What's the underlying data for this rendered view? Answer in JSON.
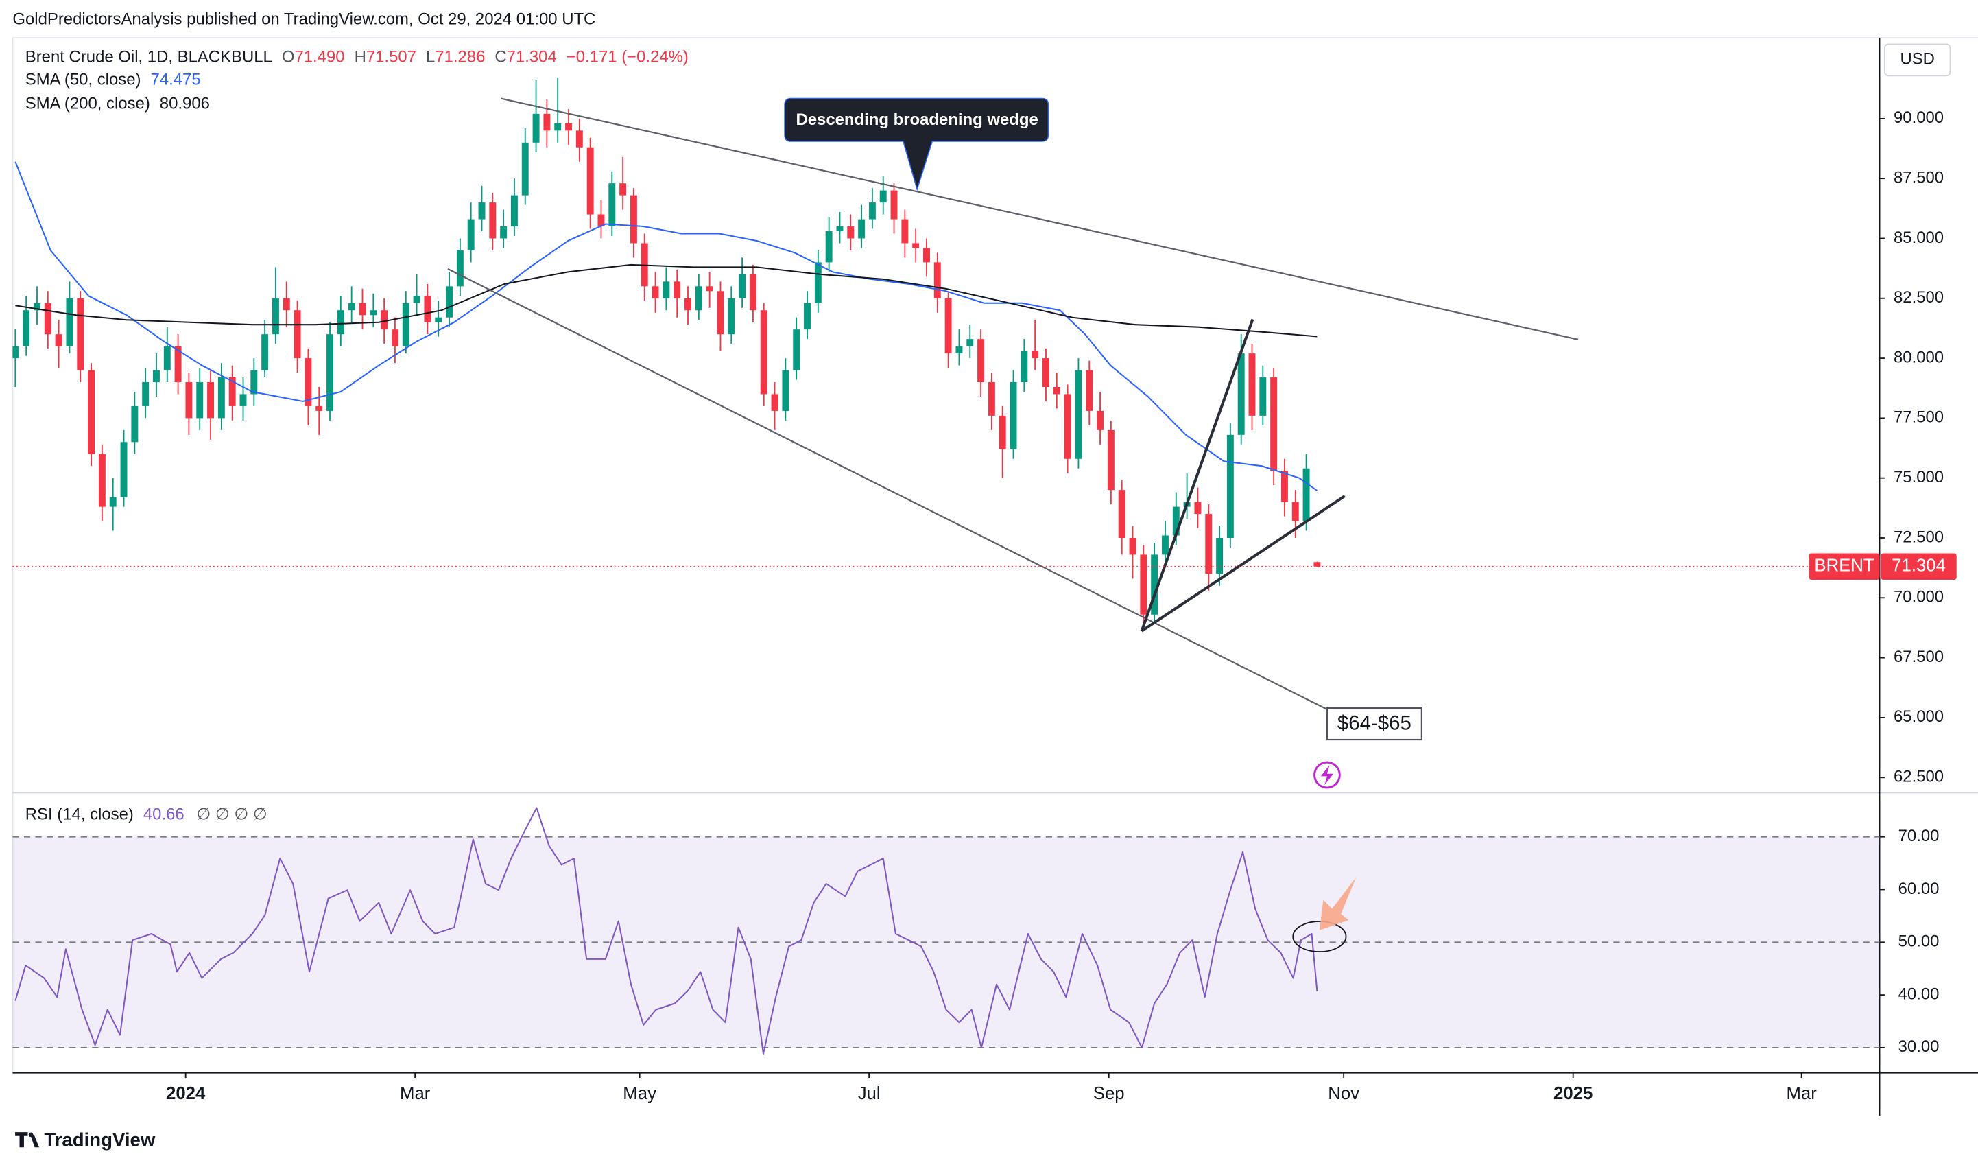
{
  "header": {
    "published": "GoldPredictorsAnalysis published on TradingView.com, Oct 29, 2024 01:00 UTC"
  },
  "footer": {
    "brand": "TradingView"
  },
  "chart_data": [
    {
      "type": "candlestick",
      "legend": {
        "symbol": "Brent Crude Oil, 1D, BLACKBULL",
        "ohlc": [
          {
            "key": "O",
            "value": "71.490"
          },
          {
            "key": "H",
            "value": "71.507"
          },
          {
            "key": "L",
            "value": "71.286"
          },
          {
            "key": "C",
            "value": "71.304"
          }
        ],
        "change": "−0.171 (−0.24%)"
      },
      "currency": "USD",
      "symbol_tag": "BRENT",
      "annotations": [
        "Descending broadening wedge",
        "$64-$65"
      ],
      "up_color": "#089981",
      "down_color": "#f23645",
      "last_price_color": "#f23645",
      "xlim": [
        -0.5,
        343.7
      ],
      "xticks": [
        {
          "value": 31.4,
          "label": "2024"
        },
        {
          "value": 73.7,
          "label": "Mar"
        },
        {
          "value": 115.1,
          "label": "May"
        },
        {
          "value": 157.4,
          "label": "Jul"
        },
        {
          "value": 201.6,
          "label": "Sep"
        },
        {
          "value": 244.9,
          "label": "Nov"
        },
        {
          "value": 287.2,
          "label": "2025"
        },
        {
          "value": 329.3,
          "label": "Mar"
        }
      ],
      "ylim": [
        61.92,
        93.37
      ],
      "yticks": [
        {
          "value": 62.5,
          "label": "62.500"
        },
        {
          "value": 65,
          "label": "65.000"
        },
        {
          "value": 67.5,
          "label": "67.500"
        },
        {
          "value": 70,
          "label": "70.000"
        },
        {
          "value": 72.5,
          "label": "72.500"
        },
        {
          "value": 75,
          "label": "75.000"
        },
        {
          "value": 77.5,
          "label": "77.500"
        },
        {
          "value": 80,
          "label": "80.000"
        },
        {
          "value": 82.5,
          "label": "82.500"
        },
        {
          "value": 85,
          "label": "85.000"
        },
        {
          "value": 87.5,
          "label": "87.500"
        },
        {
          "value": 90,
          "label": "90.000"
        }
      ],
      "x": [
        0,
        2,
        4,
        6,
        8,
        10,
        12,
        14,
        16,
        18,
        20,
        22,
        24,
        26,
        28,
        30,
        32,
        34,
        36,
        38,
        40,
        42,
        44,
        46,
        48,
        50,
        52,
        54,
        56,
        58,
        60,
        62,
        64,
        66,
        68,
        70,
        72,
        74,
        76,
        78,
        80,
        82,
        84,
        86,
        88,
        90,
        92,
        94,
        96,
        98,
        100,
        102,
        104,
        106,
        108,
        110,
        112,
        114,
        116,
        118,
        120,
        122,
        124,
        126,
        128,
        130,
        132,
        134,
        136,
        138,
        140,
        142,
        144,
        146,
        148,
        150,
        152,
        154,
        156,
        158,
        160,
        162,
        164,
        166,
        168,
        170,
        172,
        174,
        176,
        178,
        180,
        182,
        184,
        186,
        188,
        190,
        192,
        194,
        196,
        198,
        200,
        202,
        204,
        206,
        208,
        210,
        212,
        214,
        216,
        218,
        220,
        222,
        224,
        226,
        228,
        230,
        232,
        234,
        236,
        238,
        240
      ],
      "open": [
        80,
        80.5,
        82,
        82.3,
        81,
        80.5,
        82.5,
        79.5,
        76,
        73.8,
        74.2,
        76.5,
        78,
        79,
        79.5,
        80.5,
        79,
        77.5,
        79,
        77.5,
        79.2,
        78,
        78.5,
        79.5,
        81,
        82.5,
        82,
        80,
        78,
        77.8,
        81,
        82,
        82.3,
        81.8,
        82,
        81.2,
        80.5,
        82.3,
        82.6,
        81.5,
        81.7,
        83,
        84.5,
        85.8,
        86.5,
        85,
        85.5,
        86.8,
        89,
        90.2,
        89.5,
        89.8,
        89.5,
        88.8,
        86,
        85.5,
        87.3,
        86.8,
        84.8,
        83,
        82.5,
        83.2,
        82.5,
        82,
        83,
        82.8,
        81,
        82.5,
        83.5,
        82,
        78.5,
        77.8,
        79.5,
        81.2,
        82.3,
        84,
        85.3,
        85.5,
        85,
        85.8,
        86.5,
        87,
        85.8,
        84.8,
        84.6,
        84,
        82.5,
        80.2,
        80.5,
        80.8,
        79,
        77.6,
        76.2,
        79,
        80.3,
        80,
        78.8,
        78.5,
        75.8,
        79.5,
        77.8,
        77,
        74.5,
        72.5,
        71.8,
        69.3,
        71.8,
        72.6,
        73.8,
        74,
        73.5,
        71,
        72.5,
        76.8,
        80.2,
        77.6,
        79.2,
        75.3,
        74,
        73.2,
        71.49
      ],
      "high": [
        81.2,
        82.6,
        83,
        82.8,
        81.6,
        83.2,
        82.8,
        79.8,
        76.4,
        75,
        77,
        78.6,
        79.6,
        80.2,
        81.3,
        81,
        79.4,
        79.6,
        79.5,
        79.8,
        79.7,
        79.2,
        80,
        81.6,
        83.8,
        83.2,
        82.4,
        80.4,
        78.8,
        81.5,
        82.6,
        83,
        82.9,
        82.7,
        82.5,
        81.7,
        82.8,
        83.5,
        83.1,
        82.4,
        83.6,
        85,
        86.5,
        87.2,
        86.9,
        86.2,
        87.5,
        89.6,
        91.6,
        90.8,
        91.7,
        90.4,
        90,
        89.2,
        86.6,
        87.8,
        88.4,
        87.1,
        85.2,
        83.6,
        83.8,
        83.7,
        83,
        83.5,
        83.6,
        83.2,
        83,
        84.2,
        83.9,
        82.3,
        79,
        80,
        81.7,
        82.8,
        84.5,
        85.9,
        86.1,
        86,
        86.4,
        87.1,
        87.6,
        87.3,
        86.2,
        85.4,
        85,
        84.4,
        82.8,
        81.2,
        81.4,
        81.2,
        79.4,
        78,
        79.5,
        80.8,
        81.6,
        80.4,
        79.4,
        78.9,
        80,
        79.9,
        78.6,
        77.4,
        74.9,
        73,
        72.2,
        72.3,
        73.2,
        74.4,
        75.2,
        74.6,
        73.9,
        73,
        77.3,
        81,
        80.6,
        79.7,
        79.6,
        75.8,
        74.5,
        76,
        71.507
      ],
      "low": [
        78.8,
        80.1,
        81.4,
        80.4,
        79.6,
        80.2,
        79,
        75.5,
        73.2,
        72.8,
        73.8,
        76,
        77.5,
        78.4,
        79,
        78.5,
        76.8,
        77,
        76.6,
        77,
        77.4,
        77.4,
        78,
        79.2,
        80.6,
        81.3,
        79.4,
        77.2,
        76.8,
        77.4,
        80.5,
        81.5,
        81.2,
        81.3,
        80.6,
        79.8,
        80.2,
        81.8,
        81,
        80.9,
        81.3,
        82.6,
        84,
        85.3,
        84.5,
        84.6,
        85.1,
        86.4,
        88.6,
        88.8,
        89,
        88.9,
        88.2,
        85.4,
        85,
        85.1,
        86.2,
        84.2,
        82.4,
        81.9,
        82,
        81.7,
        81.4,
        81.6,
        82.1,
        80.3,
        80.6,
        82.1,
        81.5,
        78,
        77,
        77.4,
        79.1,
        80.8,
        81.9,
        83.6,
        84.8,
        84.5,
        84.6,
        85.4,
        86,
        85.2,
        84.2,
        84,
        83.4,
        81.9,
        79.6,
        79.7,
        80,
        78.4,
        77,
        75,
        75.8,
        78.6,
        79.5,
        78.2,
        77.9,
        75.2,
        75.4,
        77.2,
        76.4,
        73.9,
        71.8,
        70.8,
        68.7,
        69,
        71.3,
        72.2,
        73.3,
        72.9,
        70.3,
        70.5,
        72.1,
        76.4,
        77,
        77.2,
        74.7,
        73.4,
        72.5,
        72.8,
        71.286
      ],
      "close": [
        80.5,
        82,
        82.3,
        81,
        80.5,
        82.5,
        79.5,
        76,
        73.8,
        74.2,
        76.5,
        78,
        79,
        79.5,
        80.5,
        79,
        77.5,
        79,
        77.5,
        79.2,
        78,
        78.5,
        79.5,
        81,
        82.5,
        82,
        80,
        78,
        77.8,
        81,
        82,
        82.3,
        81.8,
        82,
        81.2,
        80.5,
        82.3,
        82.6,
        81.5,
        81.7,
        83,
        84.5,
        85.8,
        86.5,
        85,
        85.5,
        86.8,
        89,
        90.2,
        89.5,
        89.8,
        89.5,
        88.8,
        86,
        85.5,
        87.3,
        86.8,
        84.8,
        83,
        82.5,
        83.2,
        82.5,
        82,
        83,
        82.8,
        81,
        82.5,
        83.5,
        82,
        78.5,
        77.8,
        79.5,
        81.2,
        82.3,
        84,
        85.3,
        85.5,
        85,
        85.8,
        86.5,
        87,
        85.8,
        84.8,
        84.6,
        84,
        82.5,
        80.2,
        80.5,
        80.8,
        79,
        77.6,
        76.2,
        79,
        80.3,
        80,
        78.8,
        78.5,
        75.8,
        79.5,
        77.8,
        77,
        74.5,
        72.5,
        71.8,
        69.3,
        71.8,
        72.6,
        73.8,
        74,
        73.5,
        71,
        72.5,
        76.8,
        80.2,
        77.6,
        79.2,
        75.3,
        74,
        73.2,
        75.4,
        71.304
      ],
      "series": [
        {
          "name": "SMA (50, close)",
          "color": "#2962ff",
          "last_value": "74.475",
          "x": [
            0,
            6.5,
            13.5,
            20.5,
            27.4,
            34.4,
            43.7,
            53,
            60,
            67,
            74,
            80.9,
            87.9,
            94.9,
            101.9,
            108.8,
            115.8,
            122.8,
            129.8,
            136.7,
            143.7,
            150.7,
            157.7,
            164.7,
            171.6,
            178.6,
            185.6,
            192.6,
            197.2,
            201.9,
            208.8,
            215.8,
            222.8,
            229.8,
            236.7,
            240
          ],
          "values": [
            88.2,
            84.5,
            82.6,
            81.8,
            80.7,
            79.7,
            78.6,
            78.2,
            78.6,
            79.7,
            80.7,
            81.5,
            82.6,
            83.8,
            84.9,
            85.6,
            85.5,
            85.2,
            85.2,
            84.9,
            84.4,
            83.6,
            83.3,
            83.1,
            82.8,
            82.3,
            82.3,
            82,
            81,
            79.7,
            78.4,
            76.8,
            75.7,
            75.5,
            75,
            74.475
          ]
        },
        {
          "name": "SMA (200, close)",
          "color": "#131722",
          "last_value": "80.906",
          "x": [
            0,
            11.2,
            20.5,
            32.1,
            43.7,
            55.3,
            67,
            78.6,
            90.2,
            101.9,
            113.5,
            125.1,
            136.7,
            148.4,
            160,
            171.6,
            183.3,
            194.9,
            206.5,
            218.1,
            229.8,
            240
          ],
          "values": [
            82.2,
            81.8,
            81.6,
            81.5,
            81.4,
            81.4,
            81.5,
            82,
            83.1,
            83.6,
            83.9,
            83.8,
            83.8,
            83.5,
            83.3,
            82.9,
            82.3,
            81.7,
            81.4,
            81.3,
            81.1,
            80.906
          ]
        }
      ]
    },
    {
      "type": "line",
      "xlim": [
        -0.5,
        343.7
      ],
      "ylim": [
        25.21,
        78.14
      ],
      "yticks": [
        {
          "value": 30,
          "label": "30.00"
        },
        {
          "value": 40,
          "label": "40.00"
        },
        {
          "value": 50,
          "label": "50.00"
        },
        {
          "value": 60,
          "label": "60.00"
        },
        {
          "value": 70,
          "label": "70.00"
        }
      ],
      "levels": [
        70,
        50,
        30
      ],
      "band_color": "#7e57c2",
      "x": [
        0,
        1.9,
        5.3,
        7.7,
        9.3,
        12.3,
        14.7,
        17,
        19.3,
        21.6,
        25.1,
        28.6,
        29.8,
        32.1,
        34.4,
        37.9,
        40.2,
        43.7,
        46,
        48.8,
        51.2,
        54.2,
        57.7,
        61.2,
        63.5,
        67,
        69.3,
        72.8,
        75.1,
        77.4,
        80.9,
        84.4,
        86.7,
        89.1,
        91.4,
        93.7,
        96.1,
        98.4,
        100.7,
        103,
        105.3,
        108.8,
        111.2,
        113.5,
        115.8,
        118.1,
        121.6,
        124,
        126.3,
        128.6,
        130.9,
        133.3,
        135.6,
        137.9,
        140.2,
        142.6,
        144.9,
        147.2,
        149.5,
        153,
        155.3,
        157.7,
        160,
        162.3,
        164.7,
        167,
        169.3,
        171.6,
        174,
        176.3,
        178.1,
        180.9,
        183.3,
        186.7,
        189.1,
        191.4,
        193.7,
        196.7,
        199.5,
        201.9,
        205.3,
        207.7,
        210,
        212.3,
        214.7,
        217,
        219.3,
        221.6,
        224,
        226.3,
        228.6,
        230.9,
        233.3,
        235.6,
        237,
        239,
        240
      ],
      "series": [
        {
          "name": "RSI (14, close)",
          "color": "#7e57c2",
          "last_value": "40.66",
          "extras": "∅ ∅ ∅ ∅",
          "values": [
            38.9,
            45.6,
            43.2,
            39.6,
            48.7,
            37.2,
            30.5,
            37.2,
            32.4,
            50.4,
            51.6,
            49.6,
            44.4,
            48,
            43.2,
            46.8,
            48,
            51.6,
            55.1,
            65.9,
            61.1,
            44.4,
            58.3,
            59.9,
            54,
            57.5,
            51.6,
            59.9,
            54,
            51.6,
            52.8,
            69.5,
            61.1,
            59.9,
            65.9,
            70.7,
            75.5,
            68.3,
            64.7,
            65.9,
            46.8,
            46.8,
            54,
            42,
            34.3,
            37.2,
            38.4,
            40.8,
            44.4,
            37.2,
            34.8,
            52.8,
            46.8,
            28.8,
            39.6,
            49.2,
            50.4,
            57.5,
            61.1,
            58.7,
            63.5,
            64.7,
            65.9,
            51.6,
            50.4,
            49.2,
            44.4,
            37.2,
            34.8,
            37.2,
            30,
            42,
            37.2,
            51.6,
            46.8,
            44.4,
            39.6,
            51.6,
            45.6,
            37.2,
            34.8,
            30,
            38.4,
            42,
            48,
            50.4,
            39.6,
            51.6,
            59.9,
            67.1,
            56.3,
            50.4,
            48,
            43.2,
            50.4,
            51.6,
            40.66
          ]
        }
      ]
    }
  ]
}
